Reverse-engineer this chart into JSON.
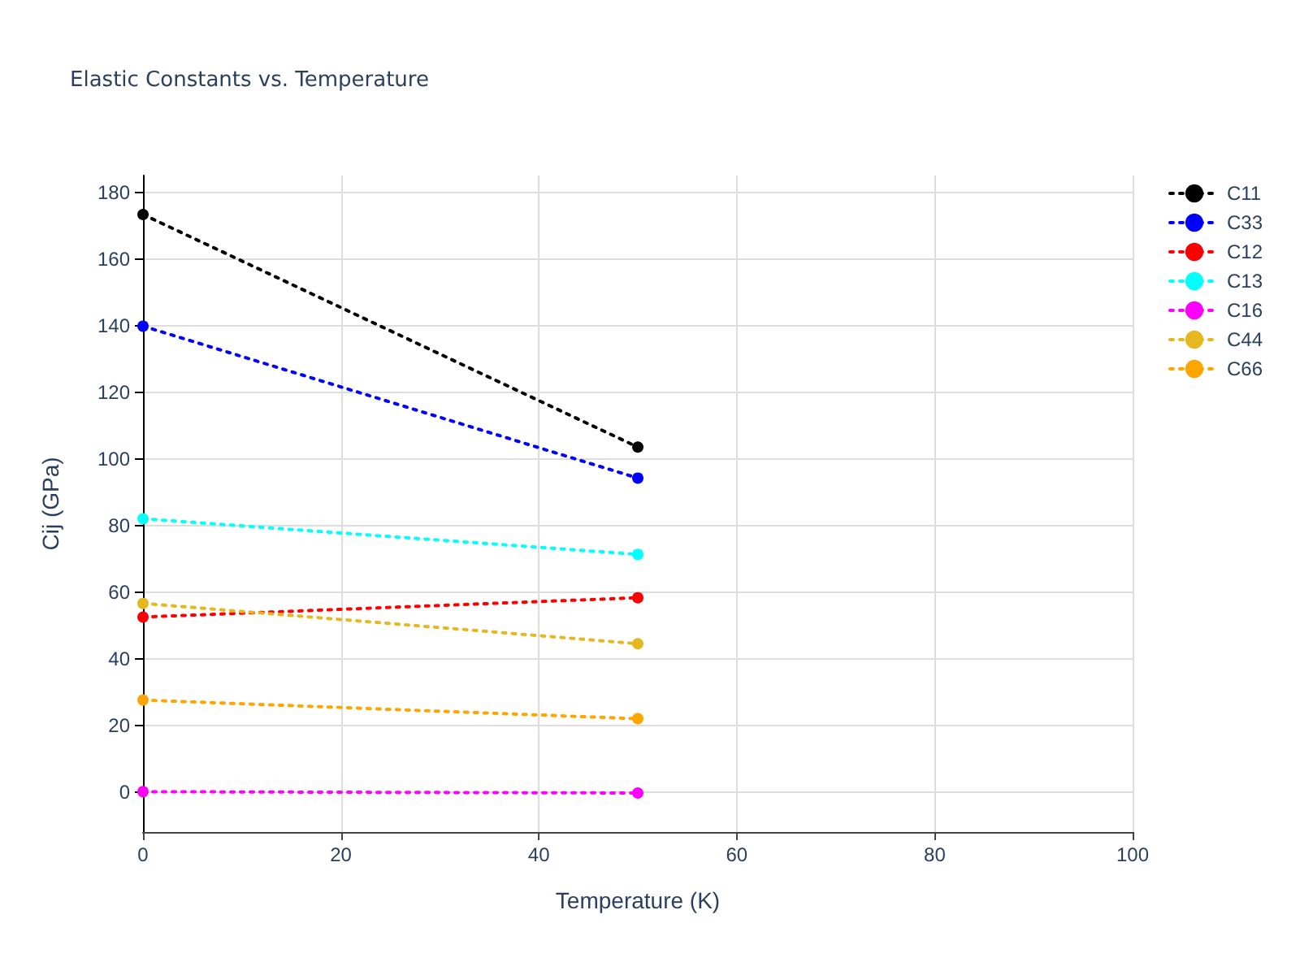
{
  "chart_data": {
    "type": "line",
    "title": "Elastic Constants vs. Temperature",
    "xlabel": "Temperature (K)",
    "ylabel": "Cij (GPa)",
    "x": [
      0,
      50
    ],
    "series": [
      {
        "name": "C11",
        "color": "#000000",
        "values": [
          173.3,
          103.5
        ]
      },
      {
        "name": "C33",
        "color": "#0000ff",
        "values": [
          139.8,
          94.2
        ]
      },
      {
        "name": "C12",
        "color": "#ff0000",
        "values": [
          52.5,
          58.3
        ]
      },
      {
        "name": "C13",
        "color": "#00ffff",
        "values": [
          82,
          71.3
        ]
      },
      {
        "name": "C16",
        "color": "#ff00ff",
        "values": [
          0.1,
          -0.3
        ]
      },
      {
        "name": "C44",
        "color": "#e6b820",
        "values": [
          56.6,
          44.5
        ]
      },
      {
        "name": "C66",
        "color": "#ffa500",
        "values": [
          27.6,
          22
        ]
      }
    ],
    "xlim": [
      0,
      100
    ],
    "xticks": [
      0,
      20,
      40,
      60,
      80,
      100
    ],
    "ylim": [
      -12,
      185
    ],
    "yticks": [
      0,
      20,
      40,
      60,
      80,
      100,
      120,
      140,
      160,
      180
    ],
    "grid": true,
    "legend": "top right",
    "marker": "circle",
    "line_style": "dotted"
  }
}
